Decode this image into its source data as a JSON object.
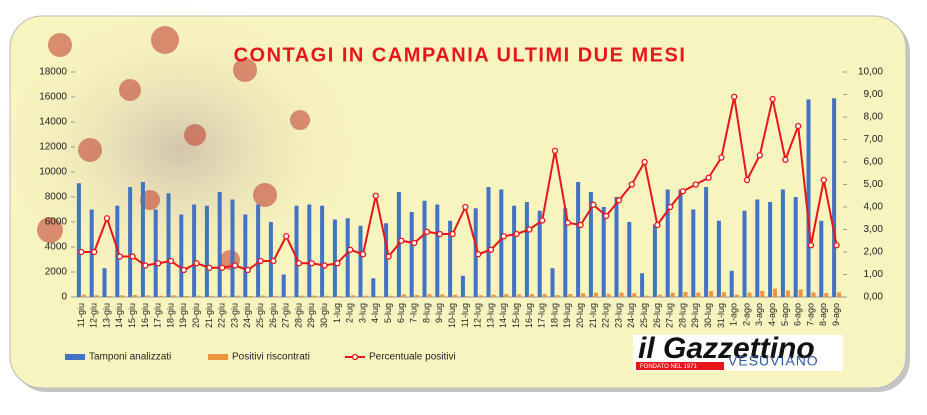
{
  "chart_data": {
    "type": "combo",
    "title": "CONTAGI IN CAMPANIA ULTIMI DUE MESI",
    "categories": [
      "11-giu",
      "12-giu",
      "13-giu",
      "14-giu",
      "15-giu",
      "16-giu",
      "17-giu",
      "18-giu",
      "19-giu",
      "20-giu",
      "21-giu",
      "22-giu",
      "23-giu",
      "24-giu",
      "25-giu",
      "26-giu",
      "27-giu",
      "28-giu",
      "29-giu",
      "30-giu",
      "1-lug",
      "2-lug",
      "3-lug",
      "4-lug",
      "5-lug",
      "6-lug",
      "7-lug",
      "8-lug",
      "9-lug",
      "10-lug",
      "11-lug",
      "12-lug",
      "13-lug",
      "14-lug",
      "15-lug",
      "16-lug",
      "17-lug",
      "18-lug",
      "19-lug",
      "20-lug",
      "21-lug",
      "22-lug",
      "23-lug",
      "24-lug",
      "25-lug",
      "26-lug",
      "27-lug",
      "28-lug",
      "29-lug",
      "30-lug",
      "31-lug",
      "1-ago",
      "2-ago",
      "3-ago",
      "4-ago",
      "5-ago",
      "6-ago",
      "7-ago",
      "8-ago",
      "9-ago"
    ],
    "series": [
      {
        "name": "Tamponi analizzati",
        "type": "bar",
        "color": "#4472c4",
        "values": [
          9100,
          7000,
          2300,
          7300,
          8800,
          9200,
          7000,
          8300,
          6600,
          7400,
          7300,
          8400,
          7800,
          6600,
          7400,
          6000,
          1800,
          7300,
          7400,
          7300,
          6200,
          6300,
          5700,
          1500,
          5900,
          8400,
          6800,
          7700,
          7400,
          6100,
          1700,
          7100,
          8800,
          8600,
          7300,
          7600,
          6900,
          2300,
          7100,
          9200,
          8400,
          7200,
          8000,
          6000,
          1900,
          5800,
          8600,
          8600,
          7000,
          8800,
          6100,
          2100,
          6900,
          7800,
          7600,
          8600,
          8000,
          15800,
          6100,
          15900
        ]
      },
      {
        "name": "Positivi riscontrati",
        "type": "bar",
        "color": "#ed9440",
        "values": [
          182,
          140,
          81,
          131,
          158,
          129,
          105,
          133,
          79,
          111,
          95,
          109,
          109,
          79,
          118,
          96,
          49,
          110,
          111,
          102,
          93,
          132,
          108,
          68,
          106,
          210,
          163,
          223,
          207,
          171,
          68,
          135,
          185,
          232,
          204,
          228,
          235,
          150,
          234,
          294,
          344,
          259,
          344,
          300,
          114,
          186,
          344,
          404,
          350,
          466,
          378,
          187,
          359,
          491,
          669,
          525,
          608,
          363,
          317,
          366
        ]
      },
      {
        "name": "Percentuale positivi",
        "type": "line",
        "axis": "y2",
        "color": "#e8161b",
        "values": [
          2.0,
          2.0,
          3.5,
          1.8,
          1.8,
          1.4,
          1.5,
          1.6,
          1.2,
          1.5,
          1.3,
          1.3,
          1.4,
          1.2,
          1.6,
          1.6,
          2.7,
          1.5,
          1.5,
          1.4,
          1.5,
          2.1,
          1.9,
          4.5,
          1.8,
          2.5,
          2.4,
          2.9,
          2.8,
          2.8,
          4.0,
          1.9,
          2.1,
          2.7,
          2.8,
          3.0,
          3.4,
          6.5,
          3.3,
          3.2,
          4.1,
          3.6,
          4.3,
          5.0,
          6.0,
          3.2,
          4.0,
          4.7,
          5.0,
          5.3,
          6.2,
          8.9,
          5.2,
          6.3,
          8.8,
          6.1,
          7.6,
          2.3,
          5.2,
          2.3
        ]
      }
    ],
    "ylim": [
      0,
      18000
    ],
    "yticks": [
      0,
      2000,
      4000,
      6000,
      8000,
      10000,
      12000,
      14000,
      16000,
      18000
    ],
    "y2lim": [
      0,
      10
    ],
    "y2ticks": [
      {
        "value": 0,
        "label": "0,00"
      },
      {
        "value": 1,
        "label": "1,00"
      },
      {
        "value": 2,
        "label": "2,00"
      },
      {
        "value": 3,
        "label": "3,00"
      },
      {
        "value": 4,
        "label": "4,00"
      },
      {
        "value": 5,
        "label": "5,00"
      },
      {
        "value": 6,
        "label": "6,00"
      },
      {
        "value": 7,
        "label": "7,00"
      },
      {
        "value": 8,
        "label": "8,00"
      },
      {
        "value": 9,
        "label": "9,00"
      },
      {
        "value": 10,
        "label": "10,00"
      }
    ],
    "grid": false,
    "legend": "bottom-left"
  },
  "logo": {
    "name": "il Gazzettino",
    "tagline": "VESUVIANO",
    "founded": "FONDATO NEL 1971"
  }
}
